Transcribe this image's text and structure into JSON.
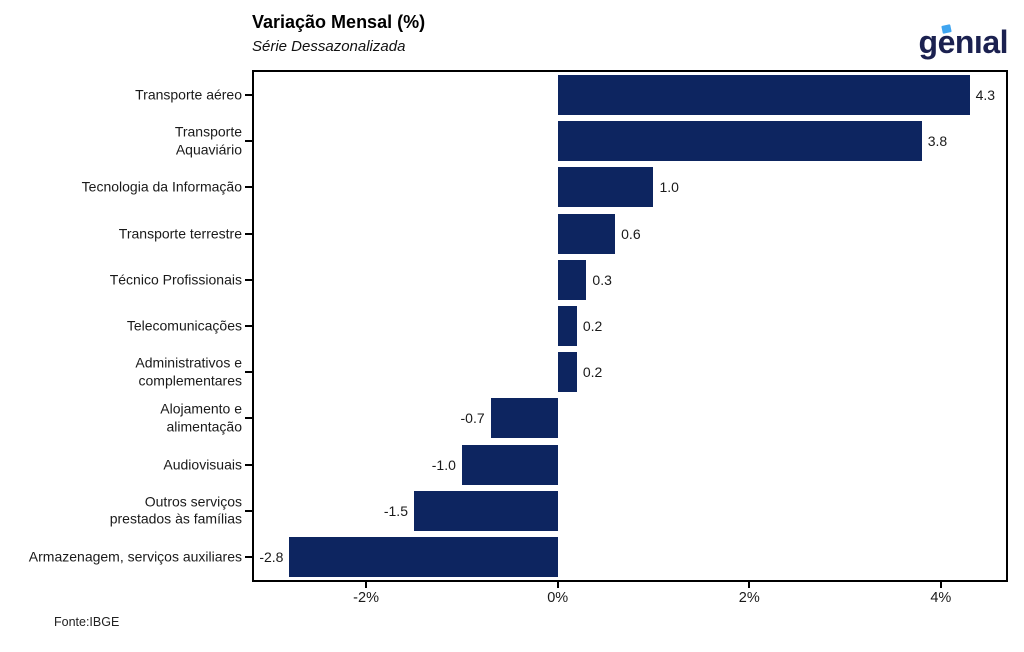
{
  "header": {
    "title": "Variação Mensal (%)",
    "subtitle": "Série Dessazonalizada"
  },
  "logo": {
    "text": "genıal",
    "text_color": "#1b2150",
    "accent_color": "#3fa5f0"
  },
  "footer": {
    "source": "Fonte:IBGE"
  },
  "chart_data": {
    "type": "bar",
    "orientation": "horizontal",
    "title": "Variação Mensal (%)",
    "subtitle": "Série Dessazonalizada",
    "categories": [
      "Transporte aéreo",
      "Transporte\nAquaviário",
      "Tecnologia da Informação",
      "Transporte terrestre",
      "Técnico Profissionais",
      "Telecomunicações",
      "Administrativos e\ncomplementares",
      "Alojamento e\nalimentação",
      "Audiovisuais",
      "Outros serviços\nprestados às famílias",
      "Armazenagem, serviços auxiliares"
    ],
    "values": [
      4.3,
      3.8,
      1.0,
      0.6,
      0.3,
      0.2,
      0.2,
      -0.7,
      -1.0,
      -1.5,
      -2.8
    ],
    "value_labels": [
      "4.3",
      "3.8",
      "1.0",
      "0.6",
      "0.3",
      "0.2",
      "0.2",
      "-0.7",
      "-1.0",
      "-1.5",
      "-2.8"
    ],
    "bar_color": "#0d2560",
    "xlim": [
      -3.17,
      4.68
    ],
    "x_ticks": [
      {
        "value": -2,
        "label": "-2%"
      },
      {
        "value": 0,
        "label": "0%"
      },
      {
        "value": 2,
        "label": "2%"
      },
      {
        "value": 4,
        "label": "4%"
      }
    ],
    "grid": false,
    "legend": false,
    "xlabel": "",
    "ylabel": "",
    "source": "Fonte:IBGE"
  }
}
